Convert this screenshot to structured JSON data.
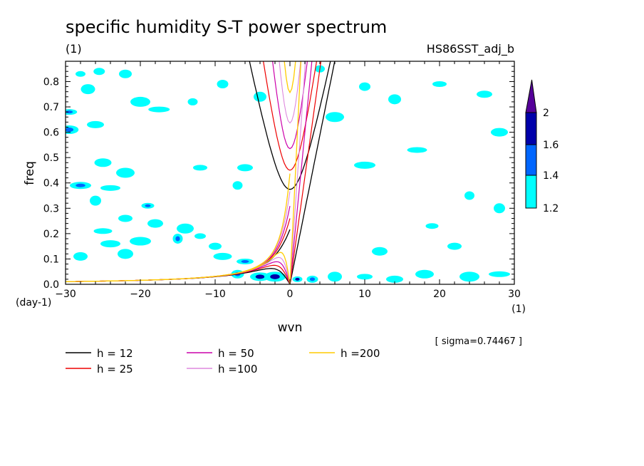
{
  "title": "specific humidity S-T power spectrum",
  "subtitle_left": "(1)",
  "subtitle_right": "HS86SST_adj_b",
  "note": "[ sigma=0.74467 ]",
  "chart_data": {
    "type": "contour",
    "xlabel": "wvn",
    "ylabel": "freq",
    "x_unit": "(1)",
    "y_unit": "(day-1)",
    "xlim": [
      -30,
      30
    ],
    "ylim": [
      0,
      0.88
    ],
    "x_ticks": [
      -30,
      -20,
      -10,
      0,
      10,
      20,
      30
    ],
    "y_ticks": [
      0.0,
      0.1,
      0.2,
      0.3,
      0.4,
      0.5,
      0.6,
      0.7,
      0.8
    ],
    "colorbar": {
      "levels": [
        1.2,
        1.4,
        1.6,
        2
      ],
      "colors": [
        "#00ffff",
        "#0066ff",
        "#0000aa",
        "#550099"
      ],
      "labels": [
        "1.2",
        "1.4",
        "1.6",
        "2"
      ]
    },
    "dispersion_curves": [
      {
        "label": "h = 12",
        "h": 12,
        "color": "#000000",
        "width": 1.3
      },
      {
        "label": "h = 25",
        "h": 25,
        "color": "#ee0000",
        "width": 1.2
      },
      {
        "label": "h = 50",
        "h": 50,
        "color": "#cc00aa",
        "width": 1.2
      },
      {
        "label": "h =100",
        "h": 100,
        "color": "#dd88dd",
        "width": 1.1
      },
      {
        "label": "h =200",
        "h": 200,
        "color": "#ffcc00",
        "width": 1.3
      }
    ],
    "significant_regions": [
      {
        "x": -28,
        "y": 0.83,
        "level": 1.2
      },
      {
        "x": -25.5,
        "y": 0.84,
        "level": 1.2
      },
      {
        "x": -22,
        "y": 0.83,
        "level": 1.2
      },
      {
        "x": -27,
        "y": 0.77,
        "level": 1.2
      },
      {
        "x": -29.5,
        "y": 0.68,
        "level": 1.4
      },
      {
        "x": -26,
        "y": 0.63,
        "level": 1.2
      },
      {
        "x": -29.5,
        "y": 0.61,
        "level": 1.4
      },
      {
        "x": -20,
        "y": 0.72,
        "level": 1.2
      },
      {
        "x": -17.5,
        "y": 0.69,
        "level": 1.2
      },
      {
        "x": -13,
        "y": 0.72,
        "level": 1.2
      },
      {
        "x": -9,
        "y": 0.79,
        "level": 1.2
      },
      {
        "x": -4,
        "y": 0.74,
        "level": 1.2
      },
      {
        "x": -12,
        "y": 0.46,
        "level": 1.2
      },
      {
        "x": -6,
        "y": 0.46,
        "level": 1.2
      },
      {
        "x": -25,
        "y": 0.48,
        "level": 1.2
      },
      {
        "x": -22,
        "y": 0.44,
        "level": 1.2
      },
      {
        "x": -24,
        "y": 0.38,
        "level": 1.2
      },
      {
        "x": -28,
        "y": 0.39,
        "level": 1.4
      },
      {
        "x": -7,
        "y": 0.39,
        "level": 1.2
      },
      {
        "x": -26,
        "y": 0.33,
        "level": 1.2
      },
      {
        "x": -19,
        "y": 0.31,
        "level": 1.4
      },
      {
        "x": -22,
        "y": 0.26,
        "level": 1.2
      },
      {
        "x": -18,
        "y": 0.24,
        "level": 1.2
      },
      {
        "x": -14,
        "y": 0.22,
        "level": 1.2
      },
      {
        "x": -25,
        "y": 0.21,
        "level": 1.2
      },
      {
        "x": -24,
        "y": 0.16,
        "level": 1.2
      },
      {
        "x": -20,
        "y": 0.17,
        "level": 1.2
      },
      {
        "x": -15,
        "y": 0.18,
        "level": 1.4
      },
      {
        "x": -12,
        "y": 0.19,
        "level": 1.2
      },
      {
        "x": -10,
        "y": 0.15,
        "level": 1.2
      },
      {
        "x": -28,
        "y": 0.11,
        "level": 1.2
      },
      {
        "x": -22,
        "y": 0.12,
        "level": 1.2
      },
      {
        "x": -6,
        "y": 0.09,
        "level": 1.4
      },
      {
        "x": -9,
        "y": 0.11,
        "level": 1.2
      },
      {
        "x": -4,
        "y": 0.03,
        "level": 1.6
      },
      {
        "x": -2,
        "y": 0.03,
        "level": 1.6
      },
      {
        "x": 1,
        "y": 0.02,
        "level": 1.6
      },
      {
        "x": 3,
        "y": 0.02,
        "level": 1.4
      },
      {
        "x": -7,
        "y": 0.04,
        "level": 1.4
      },
      {
        "x": 6,
        "y": 0.03,
        "level": 1.2
      },
      {
        "x": 10,
        "y": 0.03,
        "level": 1.2
      },
      {
        "x": 14,
        "y": 0.02,
        "level": 1.2
      },
      {
        "x": 18,
        "y": 0.04,
        "level": 1.2
      },
      {
        "x": 24,
        "y": 0.03,
        "level": 1.2
      },
      {
        "x": 28,
        "y": 0.04,
        "level": 1.2
      },
      {
        "x": 4,
        "y": 0.85,
        "level": 1.2
      },
      {
        "x": 10,
        "y": 0.78,
        "level": 1.2
      },
      {
        "x": 14,
        "y": 0.73,
        "level": 1.2
      },
      {
        "x": 20,
        "y": 0.79,
        "level": 1.2
      },
      {
        "x": 26,
        "y": 0.75,
        "level": 1.2
      },
      {
        "x": 28,
        "y": 0.6,
        "level": 1.2
      },
      {
        "x": 6,
        "y": 0.66,
        "level": 1.2
      },
      {
        "x": 17,
        "y": 0.53,
        "level": 1.2
      },
      {
        "x": 10,
        "y": 0.47,
        "level": 1.2
      },
      {
        "x": 24,
        "y": 0.35,
        "level": 1.2
      },
      {
        "x": 28,
        "y": 0.3,
        "level": 1.2
      },
      {
        "x": 19,
        "y": 0.23,
        "level": 1.2
      },
      {
        "x": 22,
        "y": 0.15,
        "level": 1.2
      },
      {
        "x": 12,
        "y": 0.13,
        "level": 1.2
      }
    ]
  },
  "legend_items": [
    {
      "label": "h = 12",
      "color": "#000000"
    },
    {
      "label": "h = 25",
      "color": "#ee0000"
    },
    {
      "label": "h = 50",
      "color": "#cc00aa"
    },
    {
      "label": "h =100",
      "color": "#dd88dd"
    },
    {
      "label": "h =200",
      "color": "#ffcc00"
    }
  ]
}
